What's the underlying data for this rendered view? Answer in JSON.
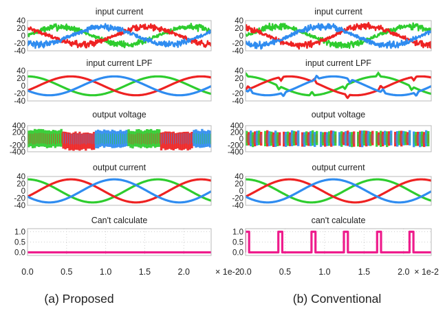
{
  "colors": {
    "phase_a": "#2ecc2e",
    "phase_b": "#ee2222",
    "phase_c": "#2f8cf0",
    "flag": "#ee1c8c",
    "frame": "#b8b8b8",
    "grid": "#cfcfcf"
  },
  "captions": [
    "(a) Proposed",
    "(b) Conventional"
  ],
  "x_axis": {
    "ticks": [
      "0.0",
      "0.5",
      "1.0",
      "1.5",
      "2.0"
    ],
    "tick_values": [
      0,
      0.5,
      1.0,
      1.5,
      2.0
    ],
    "range": [
      0,
      2.35
    ],
    "multiplier": "× 1e-2"
  },
  "chart_data": [
    {
      "column": "(a) Proposed",
      "panels": [
        {
          "title": "input current",
          "type": "line",
          "yticks": [
            "40",
            "20",
            "0",
            "-20",
            "-40"
          ],
          "ylim": [
            -40,
            40
          ],
          "kind": "pwm_noise",
          "amplitude": 30,
          "grid": false
        },
        {
          "title": "input current LPF",
          "type": "line",
          "yticks": [
            "40",
            "20",
            "0",
            "-20",
            "-40"
          ],
          "ylim": [
            -40,
            40
          ],
          "kind": "sine",
          "amplitude": 25,
          "grid": false
        },
        {
          "title": "output voltage",
          "type": "line",
          "yticks": [
            "400",
            "200",
            "0",
            "-200",
            "-400"
          ],
          "ylim": [
            -400,
            400
          ],
          "kind": "pwm_voltage",
          "amplitude": 300,
          "grid": false
        },
        {
          "title": "output current",
          "type": "line",
          "yticks": [
            "40",
            "20",
            "0",
            "-20",
            "-40"
          ],
          "ylim": [
            -40,
            40
          ],
          "kind": "sine",
          "amplitude": 32,
          "grid": false
        },
        {
          "title": "Can't calculate",
          "type": "line",
          "yticks": [
            "1.0",
            "0.5",
            "0.0"
          ],
          "ylim": [
            -0.15,
            1.15
          ],
          "kind": "flag",
          "pulses": [],
          "grid": true
        }
      ]
    },
    {
      "column": "(b) Conventional",
      "panels": [
        {
          "title": "input current",
          "type": "line",
          "yticks": [
            "40",
            "20",
            "0",
            "-20",
            "-40"
          ],
          "ylim": [
            -40,
            40
          ],
          "kind": "pwm_noise",
          "amplitude": 32,
          "grid": false
        },
        {
          "title": "input current LPF",
          "type": "line",
          "yticks": [
            "40",
            "20",
            "0",
            "-20",
            "-40"
          ],
          "ylim": [
            -40,
            40
          ],
          "kind": "sine_spiky",
          "amplitude": 25,
          "grid": false
        },
        {
          "title": "output voltage",
          "type": "line",
          "yticks": [
            "400",
            "200",
            "0",
            "-200",
            "-400"
          ],
          "ylim": [
            -400,
            400
          ],
          "kind": "pwm_voltage_gappy",
          "amplitude": 260,
          "grid": false
        },
        {
          "title": "output current",
          "type": "line",
          "yticks": [
            "40",
            "20",
            "0",
            "-20",
            "-40"
          ],
          "ylim": [
            -40,
            40
          ],
          "kind": "sine",
          "amplitude": 32,
          "grid": false
        },
        {
          "title": "can't calculate",
          "type": "line",
          "yticks": [
            "1.0",
            "0.5",
            "0.0"
          ],
          "ylim": [
            -0.15,
            1.15
          ],
          "kind": "flag",
          "pulses": [
            0.02,
            0.44,
            0.86,
            1.27,
            1.69,
            2.1
          ],
          "grid": true
        }
      ]
    }
  ]
}
